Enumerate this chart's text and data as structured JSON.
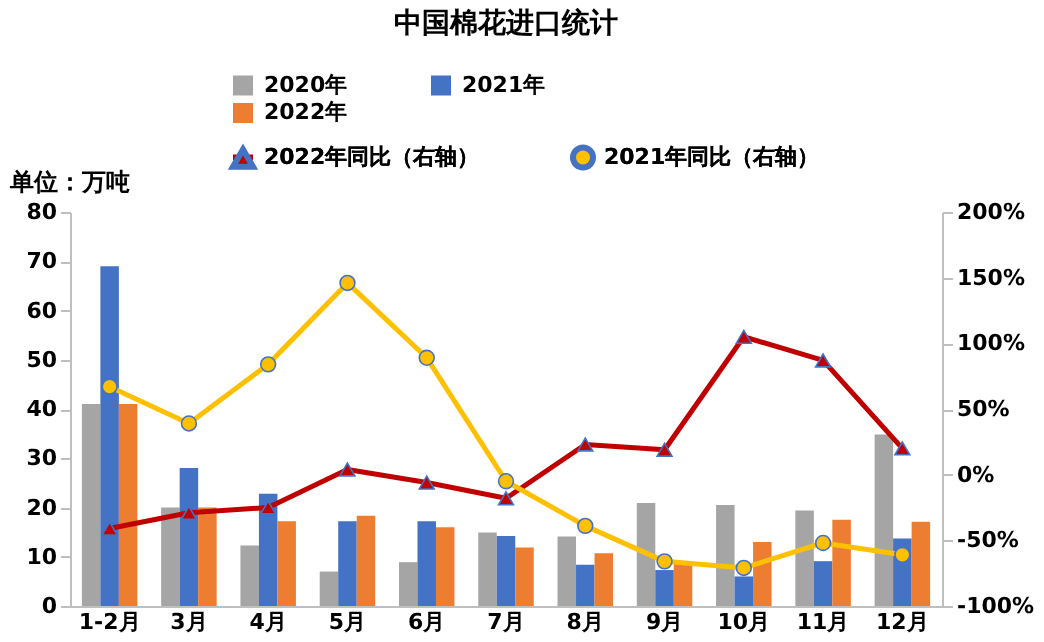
{
  "chart_data": {
    "type": "bar",
    "title": "中国棉花进口统计",
    "annotations": [
      "单位：万吨"
    ],
    "categories": [
      "1-2月",
      "3月",
      "4月",
      "5月",
      "6月",
      "7月",
      "8月",
      "9月",
      "10月",
      "11月",
      "12月"
    ],
    "series": [
      {
        "name": "2020年",
        "color": "#a5a5a5",
        "values": [
          41,
          20,
          12.3,
          7,
          8.9,
          14.9,
          14.1,
          20.9,
          20.5,
          19.4,
          34.8
        ]
      },
      {
        "name": "2021年",
        "color": "#4472c4",
        "values": [
          69,
          28,
          22.8,
          17.2,
          17.2,
          14.2,
          8.4,
          7.3,
          6,
          9.1,
          13.7
        ]
      },
      {
        "name": "2022年",
        "color": "#ed7d31",
        "values": [
          41,
          20,
          17.2,
          18.3,
          16,
          11.9,
          10.7,
          8.6,
          13,
          17.5,
          17.1
        ]
      },
      {
        "name": "2022年同比（右轴）",
        "type": "line",
        "axis": "y2",
        "marker": "triangle",
        "color": "#c00000",
        "values": [
          -41,
          -29,
          -25,
          4,
          -6,
          -18,
          23,
          19,
          105,
          87,
          20
        ]
      },
      {
        "name": "2021年同比（右轴）",
        "type": "line",
        "axis": "y2",
        "marker": "circle",
        "color": "#ffc000",
        "values": [
          67,
          39,
          84,
          146,
          89,
          -5,
          -39,
          -66,
          -71,
          -52,
          -61
        ]
      }
    ],
    "ylim": [
      0,
      80
    ],
    "yticks": [
      0,
      10,
      20,
      30,
      40,
      50,
      60,
      70,
      80
    ],
    "y2lim": [
      -100,
      200
    ],
    "y2ticks": [
      {
        "value": -100,
        "label": "-100%"
      },
      {
        "value": -50,
        "label": "-50%"
      },
      {
        "value": 0,
        "label": "0%"
      },
      {
        "value": 50,
        "label": "50%"
      },
      {
        "value": 100,
        "label": "100%"
      },
      {
        "value": 150,
        "label": "150%"
      },
      {
        "value": 200,
        "label": "200%"
      }
    ],
    "grid": false,
    "legend": "top"
  }
}
